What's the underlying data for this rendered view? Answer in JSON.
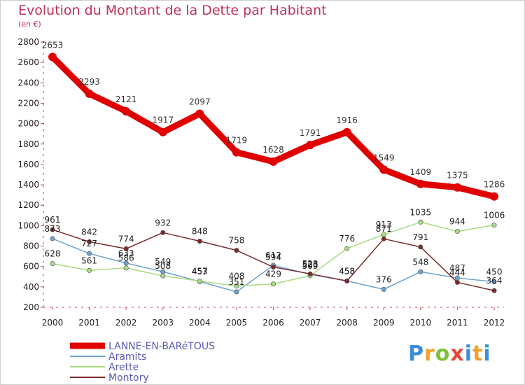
{
  "chart_data": {
    "type": "line",
    "title": "Evolution du Montant de la Dette par Habitant",
    "subtitle": "(en €)",
    "categories": [
      "2000",
      "2001",
      "2002",
      "2003",
      "2004",
      "2005",
      "2006",
      "2007",
      "2008",
      "2009",
      "2010",
      "2011",
      "2012"
    ],
    "ylim": [
      200,
      2800
    ],
    "yticks": [
      200,
      400,
      600,
      800,
      1000,
      1200,
      1400,
      1600,
      1800,
      2000,
      2200,
      2400,
      2600,
      2800
    ],
    "grid": false,
    "legend_position": "bottom-left",
    "series": [
      {
        "name": "LANNE-EN-BARéTOUS",
        "color": "#e00000",
        "values": [
          2653,
          2293,
          2121,
          1917,
          2097,
          1719,
          1628,
          1791,
          1916,
          1549,
          1409,
          1375,
          1286
        ]
      },
      {
        "name": "Aramits",
        "color": "#6ea3d0",
        "values": [
          873,
          727,
          633,
          549,
          453,
          351,
          612,
          523,
          458,
          376,
          548,
          487,
          450
        ]
      },
      {
        "name": "Arette",
        "color": "#a8dc80",
        "values": [
          628,
          561,
          586,
          508,
          457,
          408,
          429,
          509,
          776,
          913,
          1035,
          944,
          1006
        ]
      },
      {
        "name": "Montory",
        "color": "#7a2a2a",
        "values": [
          961,
          842,
          774,
          932,
          848,
          758,
          594,
          528,
          458,
          871,
          791,
          444,
          364
        ]
      }
    ]
  },
  "logo": {
    "letters": [
      "P",
      "r",
      "o",
      "x",
      "i",
      "t",
      "i"
    ]
  }
}
